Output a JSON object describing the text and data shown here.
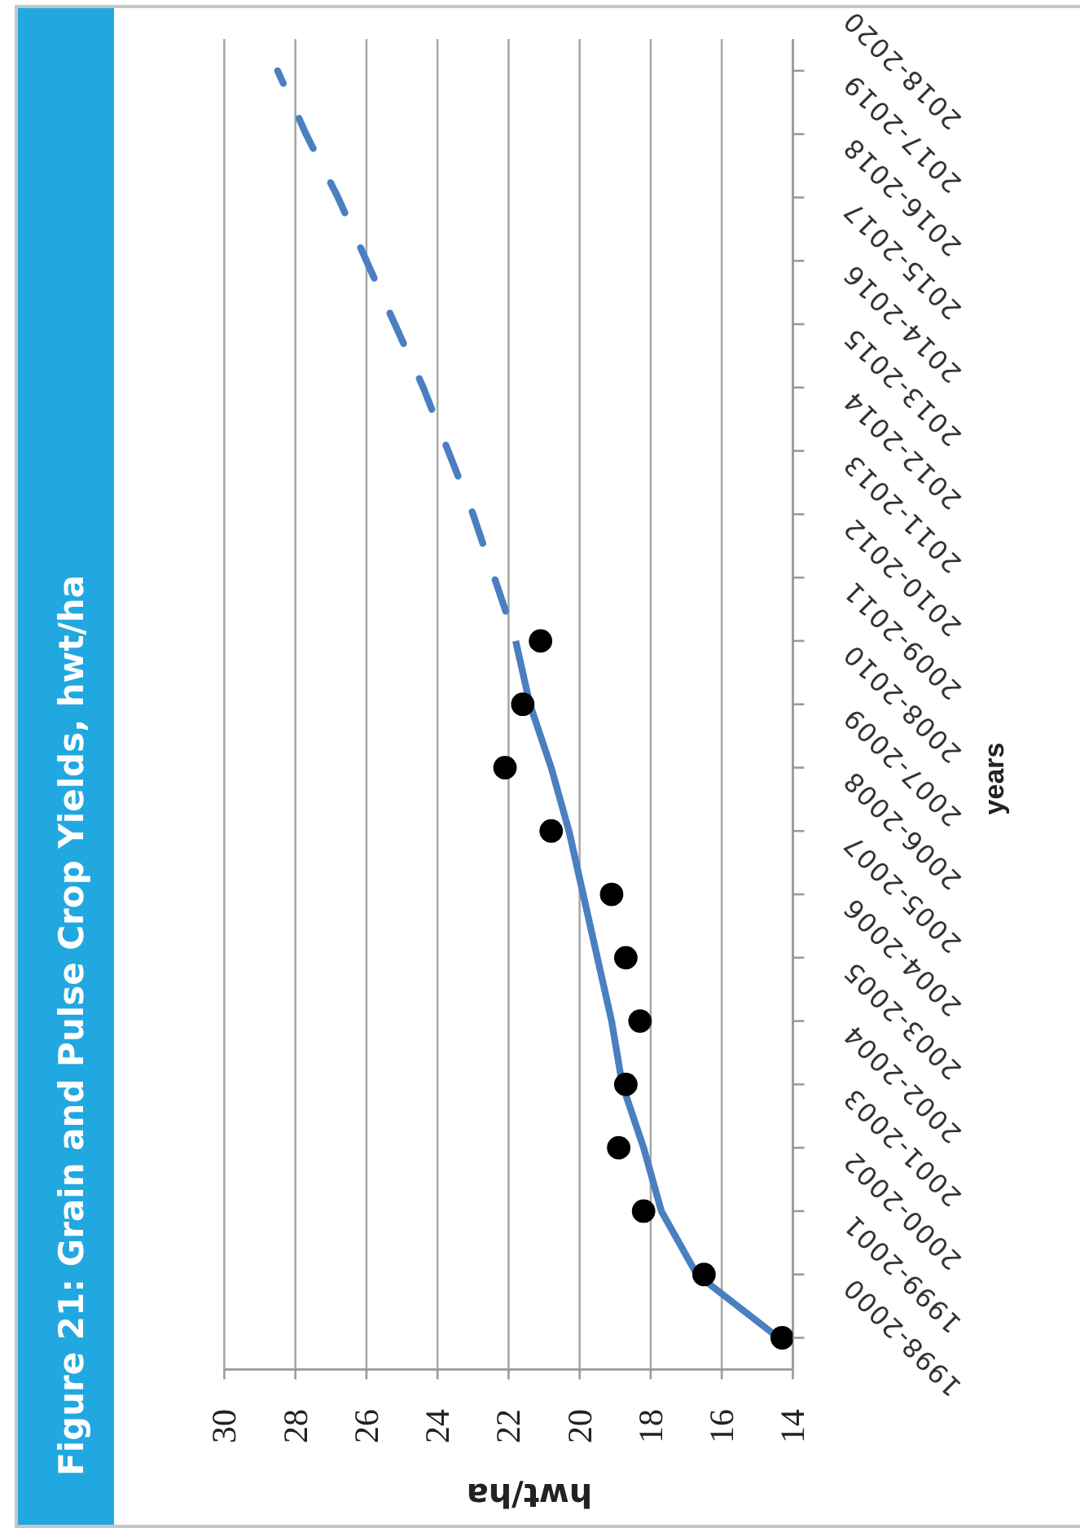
{
  "chart_data": {
    "type": "line",
    "orientation": "horizontal",
    "title": "Figure 21: Grain and Pulse Crop Yields, hwt/ha",
    "xlabel": "hwt/ha",
    "ylabel": "years",
    "categories": [
      "2018-2020",
      "2017-2019",
      "2016-2018",
      "2015-2017",
      "2014-2016",
      "2013-2015",
      "2012-2014",
      "2011-2013",
      "2010-2012",
      "2009-2011",
      "2008-2010",
      "2007-2009",
      "2006-2008",
      "2005-2007",
      "2004-2006",
      "2003-2005",
      "2002-2004",
      "2001-2003",
      "2000-2002",
      "1999-2001",
      "1998-2000"
    ],
    "xlim": [
      30,
      14
    ],
    "xticks": [
      30,
      28,
      26,
      24,
      22,
      20,
      18,
      16,
      14
    ],
    "grid": "x",
    "series": [
      {
        "color": "#4a7fc1",
        "line_style": "solid",
        "values": [
          null,
          null,
          null,
          null,
          null,
          null,
          null,
          null,
          null,
          21.8,
          21.4,
          20.8,
          20.3,
          19.9,
          19.5,
          19.1,
          18.8,
          18.2,
          17.7,
          16.7,
          14.4
        ]
      },
      {
        "color": "#4a7fc1",
        "line_style": "dashed",
        "values": [
          28.5,
          27.7,
          26.8,
          26.0,
          25.2,
          24.4,
          23.7,
          23.0,
          22.4,
          21.8,
          null,
          null,
          null,
          null,
          null,
          null,
          null,
          null,
          null,
          null,
          null
        ]
      },
      {
        "type": "scatter",
        "color": "#000000",
        "marker": "circle",
        "values": [
          null,
          null,
          null,
          null,
          null,
          null,
          null,
          null,
          null,
          21.1,
          21.6,
          22.1,
          20.8,
          19.1,
          18.7,
          18.3,
          18.7,
          18.9,
          18.2,
          16.5,
          14.3
        ]
      }
    ]
  }
}
